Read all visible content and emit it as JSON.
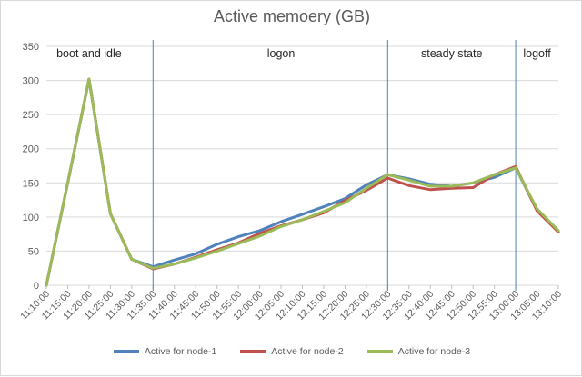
{
  "chart_data": {
    "type": "line",
    "title": "Active memoery (GB)",
    "xlabel": "",
    "ylabel": "",
    "ylim": [
      0,
      350
    ],
    "y_ticks": [
      0,
      50,
      100,
      150,
      200,
      250,
      300,
      350
    ],
    "grid": true,
    "legend_position": "bottom",
    "categories": [
      "11:10:00",
      "11:15:00",
      "11:20:00",
      "11:25:00",
      "11:30:00",
      "11:35:00",
      "11:40:00",
      "11:45:00",
      "11:50:00",
      "11:55:00",
      "12:00:00",
      "12:05:00",
      "12:10:00",
      "12:15:00",
      "12:20:00",
      "12:25:00",
      "12:30:00",
      "12:35:00",
      "12:40:00",
      "12:45:00",
      "12:50:00",
      "12:55:00",
      "13:00:00",
      "13:05:00",
      "13:10:00"
    ],
    "series": [
      {
        "name": "Active for node-1",
        "color": "#4f81bd",
        "values": [
          0,
          150,
          302,
          105,
          38,
          27,
          37,
          46,
          60,
          71,
          80,
          93,
          104,
          115,
          127,
          147,
          162,
          156,
          148,
          145,
          150,
          158,
          172,
          110,
          80
        ]
      },
      {
        "name": "Active for node-2",
        "color": "#c0504d",
        "values": [
          0,
          150,
          302,
          105,
          38,
          24,
          31,
          41,
          52,
          62,
          76,
          87,
          96,
          106,
          124,
          139,
          157,
          146,
          140,
          142,
          143,
          162,
          174,
          109,
          78
        ]
      },
      {
        "name": "Active for node-3",
        "color": "#9bbb59",
        "values": [
          0,
          150,
          302,
          105,
          38,
          25,
          31,
          40,
          50,
          61,
          72,
          86,
          96,
          108,
          121,
          142,
          162,
          154,
          145,
          145,
          150,
          162,
          172,
          112,
          80
        ]
      }
    ],
    "phase_lines": [
      "11:35:00",
      "12:30:00",
      "13:00:00"
    ],
    "phase_labels": [
      {
        "text": "boot and idle",
        "x": "11:20:00"
      },
      {
        "text": "logon",
        "x": "12:05:00"
      },
      {
        "text": "steady state",
        "x": "12:45:00"
      },
      {
        "text": "logoff",
        "x": "13:05:00"
      }
    ]
  }
}
